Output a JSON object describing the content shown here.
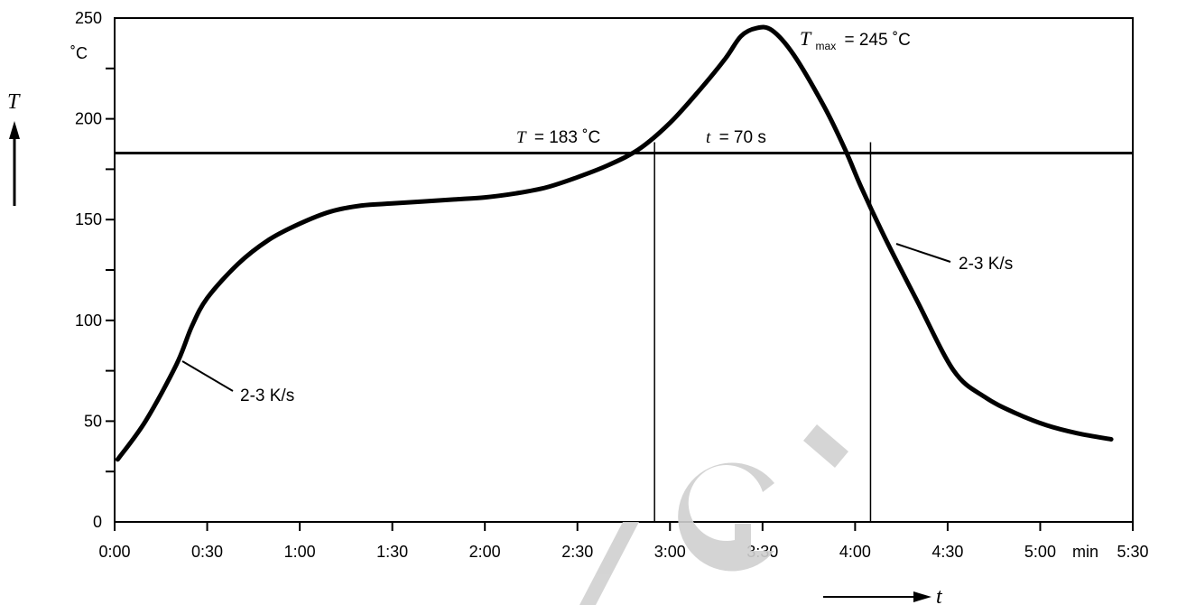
{
  "chart_data": {
    "type": "line",
    "title": "",
    "xlabel": "t",
    "x_unit": "min",
    "ylabel": "T",
    "y_unit": "˚C",
    "xlim": [
      0,
      330
    ],
    "ylim": [
      0,
      250
    ],
    "x_ticks": [
      {
        "value": 0,
        "label": "0:00"
      },
      {
        "value": 30,
        "label": "0:30"
      },
      {
        "value": 60,
        "label": "1:00"
      },
      {
        "value": 90,
        "label": "1:30"
      },
      {
        "value": 120,
        "label": "2:00"
      },
      {
        "value": 150,
        "label": "2:30"
      },
      {
        "value": 180,
        "label": "3:00"
      },
      {
        "value": 210,
        "label": "3:30"
      },
      {
        "value": 240,
        "label": "4:00"
      },
      {
        "value": 270,
        "label": "4:30"
      },
      {
        "value": 300,
        "label": "5:00"
      },
      {
        "value": 330,
        "label": "5:30"
      }
    ],
    "y_ticks": [
      0,
      50,
      100,
      150,
      200,
      250
    ],
    "grid": false,
    "series": [
      {
        "x": [
          1,
          10,
          20,
          25,
          30,
          40,
          50,
          60,
          70,
          80,
          90,
          100,
          110,
          120,
          130,
          140,
          150,
          160,
          170,
          180,
          190,
          198,
          203,
          208,
          213,
          220,
          230,
          237,
          242,
          250,
          260,
          272,
          282,
          292,
          302,
          312,
          323
        ],
        "y": [
          31,
          50,
          78,
          97,
          111,
          128,
          140,
          148,
          154,
          157,
          158,
          159,
          160,
          161,
          163,
          166,
          171,
          177,
          185,
          198,
          215,
          230,
          241,
          245,
          244,
          232,
          206,
          184,
          166,
          140,
          110,
          75,
          62,
          54,
          48,
          44,
          41
        ]
      }
    ],
    "reference_lines": {
      "horizontal_T": 183,
      "vertical_t": [
        175,
        245
      ]
    },
    "annotations": {
      "t_label_y": "T",
      "t_eq": "= 183 ˚C",
      "time_sym": "t",
      "time_eq": "= 70 s",
      "tmax_sym": "T",
      "tmax_sub": "max",
      "tmax_eq": "= 245 ˚C",
      "rate_up": "2-3 K/s",
      "rate_down": "2-3 K/s"
    }
  }
}
